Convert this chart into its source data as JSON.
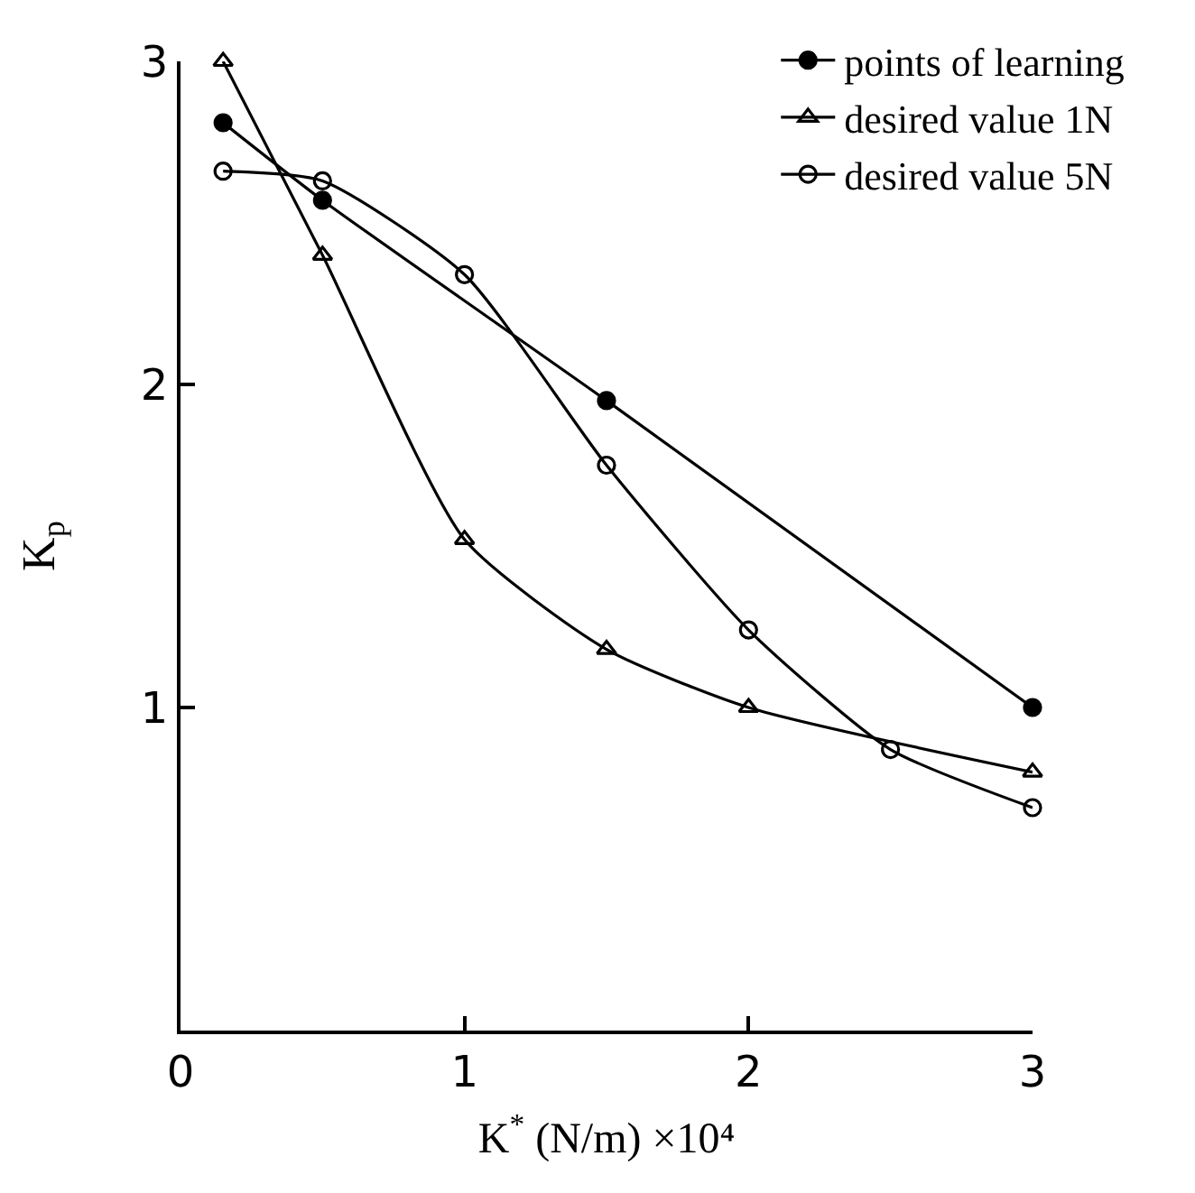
{
  "chart_data": {
    "type": "line",
    "xlabel": "K$^{*}$ (N/m) ×10⁴",
    "ylabel": "K$_{p}$",
    "xlim": [
      0,
      3
    ],
    "ylim": [
      0,
      3
    ],
    "xticks": [
      0,
      1,
      2,
      3
    ],
    "yticks": [
      1,
      2,
      3
    ],
    "legend": "top right",
    "series": [
      {
        "name": "points of learning",
        "color": "#000000",
        "marker": "circle",
        "x": [
          0.15,
          0.5,
          1.5,
          3
        ],
        "values": [
          2.81,
          2.57,
          1.95,
          1.0
        ]
      },
      {
        "name": "desired value 1N",
        "color": "#000000",
        "marker": "triangle",
        "x": [
          0.15,
          0.5,
          1,
          1.5,
          2,
          3
        ],
        "values": [
          3.0,
          2.4,
          1.52,
          1.18,
          1.0,
          0.8
        ]
      },
      {
        "name": "desired value 5N",
        "color": "#000000",
        "marker": "circle-open",
        "x": [
          0.15,
          0.5,
          1,
          1.5,
          2,
          2.5,
          3
        ],
        "values": [
          2.66,
          2.63,
          2.34,
          1.75,
          1.24,
          0.87,
          0.69
        ]
      }
    ]
  }
}
